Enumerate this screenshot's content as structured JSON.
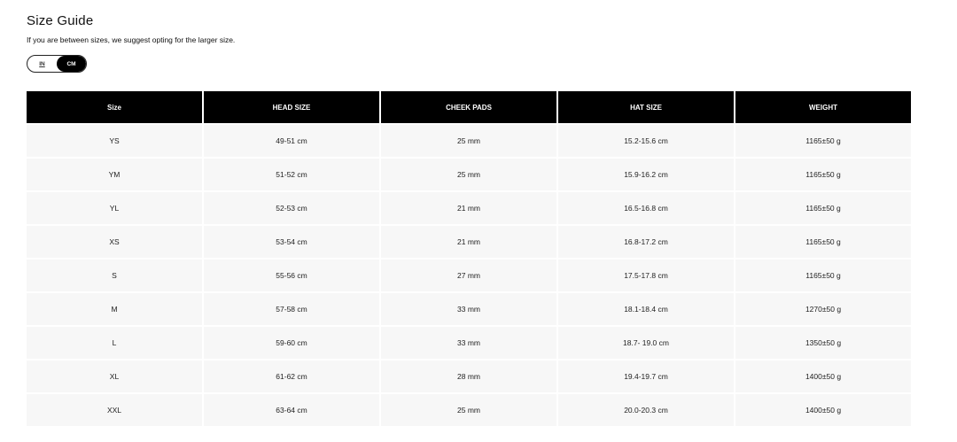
{
  "title": "Size Guide",
  "subtitle": "If you are between sizes, we suggest opting for the larger size.",
  "unit_toggle": {
    "options": [
      "IN",
      "CM"
    ],
    "selected": "CM"
  },
  "table": {
    "headers": [
      "Size",
      "HEAD SIZE",
      "CHEEK PADS",
      "HAT SIZE",
      "WEIGHT"
    ],
    "rows": [
      [
        "YS",
        "49-51 cm",
        "25 mm",
        "15.2-15.6 cm",
        "1165±50 g"
      ],
      [
        "YM",
        "51-52 cm",
        "25 mm",
        "15.9-16.2 cm",
        "1165±50 g"
      ],
      [
        "YL",
        "52-53 cm",
        "21 mm",
        "16.5-16.8 cm",
        "1165±50 g"
      ],
      [
        "XS",
        "53-54 cm",
        "21 mm",
        "16.8-17.2 cm",
        "1165±50 g"
      ],
      [
        "S",
        "55-56 cm",
        "27 mm",
        "17.5-17.8 cm",
        "1165±50 g"
      ],
      [
        "M",
        "57-58 cm",
        "33 mm",
        "18.1-18.4 cm",
        "1270±50 g"
      ],
      [
        "L",
        "59-60 cm",
        "33 mm",
        "18.7- 19.0 cm",
        "1350±50 g"
      ],
      [
        "XL",
        "61-62 cm",
        "28 mm",
        "19.4-19.7 cm",
        "1400±50 g"
      ],
      [
        "XXL",
        "63-64 cm",
        "25 mm",
        "20.0-20.3 cm",
        "1400±50 g"
      ]
    ]
  }
}
